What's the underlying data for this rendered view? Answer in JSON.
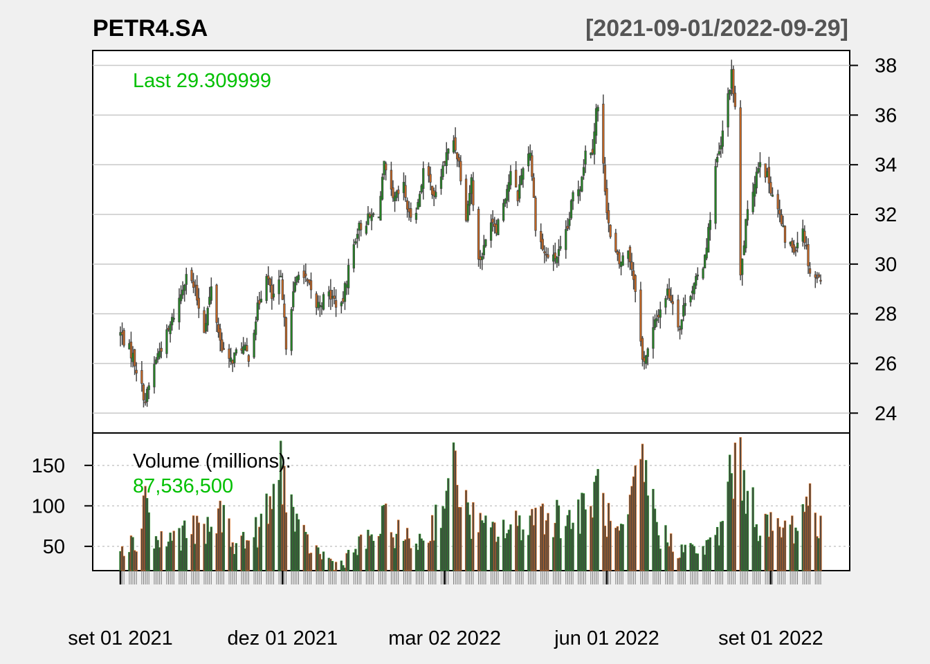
{
  "title": "PETR4.SA",
  "date_range_label": "[2021-09-01/2022-09-29]",
  "last_label": "Last 29.309999",
  "volume_label": "Volume (millions):",
  "volume_last": "87,536,500",
  "colors": {
    "background": "#f0f0f0",
    "plot_bg": "#ffffff",
    "up": "#228b22",
    "down": "#d2691e",
    "wick": "#444444",
    "volume_bar": "#444444",
    "grid": "#c8c8c8",
    "last_text": "#00c000"
  },
  "chart_data": [
    {
      "type": "candlestick",
      "series_label": "PETR4.SA",
      "x_start": "2021-09-01",
      "x_end": "2022-09-29",
      "ylim": [
        23.2,
        38.6
      ],
      "yticks": [
        24,
        26,
        28,
        30,
        32,
        34,
        36,
        38
      ],
      "grid": true,
      "x_tick_labels": [
        "set 01 2021",
        "dez 01 2021",
        "mar 02 2022",
        "jun 01 2022",
        "set 01 2022"
      ],
      "x_tick_dates": [
        "2021-09-01",
        "2021-12-01",
        "2022-03-02",
        "2022-06-01",
        "2022-09-01"
      ],
      "last_value": 29.309999,
      "close_keypoints": [
        [
          "2021-09-01",
          27.2
        ],
        [
          "2021-09-08",
          26.3
        ],
        [
          "2021-09-15",
          24.5
        ],
        [
          "2021-09-21",
          26.2
        ],
        [
          "2021-09-28",
          27.3
        ],
        [
          "2021-10-05",
          28.8
        ],
        [
          "2021-10-08",
          29.7
        ],
        [
          "2021-10-13",
          28.9
        ],
        [
          "2021-10-18",
          27.4
        ],
        [
          "2021-10-22",
          29.0
        ],
        [
          "2021-10-27",
          26.9
        ],
        [
          "2021-11-01",
          26.0
        ],
        [
          "2021-11-08",
          26.7
        ],
        [
          "2021-11-12",
          26.3
        ],
        [
          "2021-11-17",
          28.2
        ],
        [
          "2021-11-22",
          29.7
        ],
        [
          "2021-11-25",
          28.6
        ],
        [
          "2021-11-30",
          29.3
        ],
        [
          "2021-12-03",
          26.8
        ],
        [
          "2021-12-06",
          28.4
        ],
        [
          "2021-12-10",
          29.8
        ],
        [
          "2021-12-15",
          29.2
        ],
        [
          "2021-12-20",
          28.3
        ],
        [
          "2021-12-27",
          28.8
        ],
        [
          "2022-01-03",
          28.2
        ],
        [
          "2022-01-07",
          29.8
        ],
        [
          "2022-01-12",
          31.4
        ],
        [
          "2022-01-18",
          31.8
        ],
        [
          "2022-01-24",
          32.1
        ],
        [
          "2022-01-27",
          33.9
        ],
        [
          "2022-02-01",
          32.5
        ],
        [
          "2022-02-07",
          33.1
        ],
        [
          "2022-02-10",
          31.9
        ],
        [
          "2022-02-15",
          32.4
        ],
        [
          "2022-02-18",
          33.8
        ],
        [
          "2022-02-22",
          33.2
        ],
        [
          "2022-02-25",
          32.7
        ],
        [
          "2022-03-02",
          34.2
        ],
        [
          "2022-03-07",
          35.0
        ],
        [
          "2022-03-10",
          34.1
        ],
        [
          "2022-03-14",
          32.0
        ],
        [
          "2022-03-17",
          33.4
        ],
        [
          "2022-03-21",
          30.1
        ],
        [
          "2022-03-24",
          30.6
        ],
        [
          "2022-03-28",
          31.9
        ],
        [
          "2022-03-31",
          31.5
        ],
        [
          "2022-04-05",
          32.8
        ],
        [
          "2022-04-08",
          33.6
        ],
        [
          "2022-04-12",
          32.7
        ],
        [
          "2022-04-15",
          34.0
        ],
        [
          "2022-04-19",
          34.6
        ],
        [
          "2022-04-22",
          31.6
        ],
        [
          "2022-04-27",
          30.4
        ],
        [
          "2022-05-02",
          30.2
        ],
        [
          "2022-05-06",
          30.5
        ],
        [
          "2022-05-10",
          31.4
        ],
        [
          "2022-05-13",
          32.8
        ],
        [
          "2022-05-17",
          33.2
        ],
        [
          "2022-05-20",
          34.5
        ],
        [
          "2022-05-24",
          34.7
        ],
        [
          "2022-05-26",
          36.2
        ],
        [
          "2022-05-27",
          36.3
        ],
        [
          "2022-06-01",
          32.3
        ],
        [
          "2022-06-03",
          31.0
        ],
        [
          "2022-06-08",
          30.0
        ],
        [
          "2022-06-13",
          30.6
        ],
        [
          "2022-06-17",
          29.1
        ],
        [
          "2022-06-21",
          26.1
        ],
        [
          "2022-06-24",
          26.5
        ],
        [
          "2022-06-28",
          27.6
        ],
        [
          "2022-07-01",
          28.2
        ],
        [
          "2022-07-05",
          28.9
        ],
        [
          "2022-07-08",
          28.5
        ],
        [
          "2022-07-12",
          27.4
        ],
        [
          "2022-07-15",
          28.6
        ],
        [
          "2022-07-20",
          29.1
        ],
        [
          "2022-07-25",
          30.0
        ],
        [
          "2022-07-28",
          31.3
        ],
        [
          "2022-08-01",
          33.9
        ],
        [
          "2022-08-04",
          34.7
        ],
        [
          "2022-08-08",
          36.8
        ],
        [
          "2022-08-10",
          37.6
        ],
        [
          "2022-08-12",
          36.3
        ],
        [
          "2022-08-15",
          29.4
        ],
        [
          "2022-08-18",
          31.6
        ],
        [
          "2022-08-23",
          33.4
        ],
        [
          "2022-08-26",
          34.3
        ],
        [
          "2022-08-31",
          33.3
        ],
        [
          "2022-09-05",
          32.2
        ],
        [
          "2022-09-09",
          31.0
        ],
        [
          "2022-09-14",
          30.6
        ],
        [
          "2022-09-19",
          31.5
        ],
        [
          "2022-09-23",
          29.7
        ],
        [
          "2022-09-29",
          29.31
        ]
      ]
    },
    {
      "type": "bar",
      "series_label": "Volume (millions):",
      "ylim": [
        20,
        190
      ],
      "yticks": [
        50,
        100,
        150
      ],
      "grid": true,
      "last_value": 87536500,
      "volume_keypoints": [
        [
          "2021-09-01",
          70
        ],
        [
          "2021-09-10",
          65
        ],
        [
          "2021-09-15",
          155
        ],
        [
          "2021-09-20",
          68
        ],
        [
          "2021-10-01",
          75
        ],
        [
          "2021-10-10",
          88
        ],
        [
          "2021-10-20",
          82
        ],
        [
          "2021-10-28",
          112
        ],
        [
          "2021-11-05",
          65
        ],
        [
          "2021-11-15",
          78
        ],
        [
          "2021-11-25",
          125
        ],
        [
          "2021-11-30",
          190
        ],
        [
          "2021-12-10",
          80
        ],
        [
          "2021-12-20",
          55
        ],
        [
          "2022-01-01",
          32
        ],
        [
          "2022-01-10",
          55
        ],
        [
          "2022-01-20",
          75
        ],
        [
          "2022-01-27",
          100
        ],
        [
          "2022-02-10",
          68
        ],
        [
          "2022-02-20",
          75
        ],
        [
          "2022-03-02",
          140
        ],
        [
          "2022-03-08",
          180
        ],
        [
          "2022-03-15",
          110
        ],
        [
          "2022-03-25",
          85
        ],
        [
          "2022-04-10",
          90
        ],
        [
          "2022-04-25",
          115
        ],
        [
          "2022-05-10",
          105
        ],
        [
          "2022-05-20",
          115
        ],
        [
          "2022-05-27",
          155
        ],
        [
          "2022-06-03",
          90
        ],
        [
          "2022-06-10",
          75
        ],
        [
          "2022-06-21",
          190
        ],
        [
          "2022-07-01",
          80
        ],
        [
          "2022-07-15",
          55
        ],
        [
          "2022-07-28",
          60
        ],
        [
          "2022-08-05",
          90
        ],
        [
          "2022-08-09",
          185
        ],
        [
          "2022-08-16",
          175
        ],
        [
          "2022-08-25",
          100
        ],
        [
          "2022-09-05",
          85
        ],
        [
          "2022-09-15",
          95
        ],
        [
          "2022-09-23",
          140
        ],
        [
          "2022-09-29",
          87.5
        ]
      ]
    }
  ]
}
